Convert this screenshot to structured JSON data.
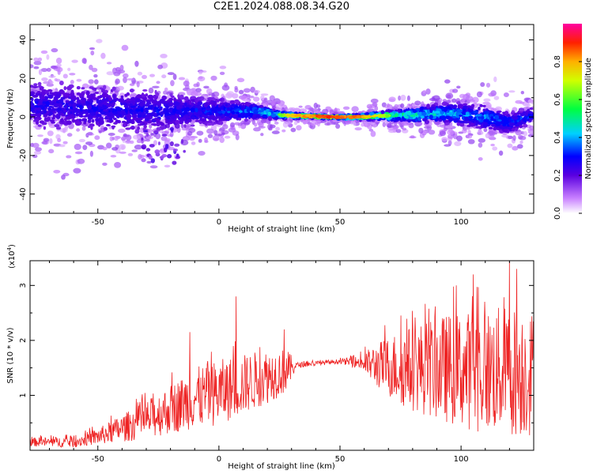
{
  "title": "C2E1.2024.088.08.34.G20",
  "colors": {
    "snr_line": "#ee2222",
    "axis": "#000000"
  },
  "chart_data": [
    {
      "type": "heatmap",
      "xlabel": "Height of straight line (km)",
      "ylabel": "Frequency (Hz)",
      "xlim": [
        -78,
        130
      ],
      "ylim": [
        -50,
        48
      ],
      "x_ticks": [
        -50,
        0,
        50,
        100
      ],
      "y_ticks": [
        -40,
        -20,
        0,
        20,
        40
      ],
      "colorbar": {
        "label": "Normalized spectral amplitude",
        "range": [
          0,
          1
        ],
        "ticks": [
          "0.0",
          "0.2",
          "0.4",
          "0.6",
          "0.8"
        ],
        "colormap": "rainbow (white-violet-blue-cyan-green-yellow-red-magenta)"
      },
      "ridge": [
        {
          "x": -75,
          "f": 6,
          "spread": 9
        },
        {
          "x": -60,
          "f": 5,
          "spread": 9
        },
        {
          "x": -45,
          "f": 4,
          "spread": 9
        },
        {
          "x": -30,
          "f": 3,
          "spread": 8
        },
        {
          "x": -15,
          "f": 3,
          "spread": 6
        },
        {
          "x": 0,
          "f": 3,
          "spread": 5
        },
        {
          "x": 15,
          "f": 3,
          "spread": 3
        },
        {
          "x": 25,
          "f": 1,
          "spread": 1.5
        },
        {
          "x": 35,
          "f": 0.5,
          "spread": 0.8
        },
        {
          "x": 45,
          "f": 0,
          "spread": 0.6
        },
        {
          "x": 55,
          "f": 0,
          "spread": 0.8
        },
        {
          "x": 65,
          "f": 0.5,
          "spread": 1.5
        },
        {
          "x": 80,
          "f": 1,
          "spread": 3
        },
        {
          "x": 95,
          "f": 2,
          "spread": 4
        },
        {
          "x": 110,
          "f": 0,
          "spread": 5
        },
        {
          "x": 120,
          "f": -3,
          "spread": 4
        },
        {
          "x": 130,
          "f": 1,
          "spread": 3
        }
      ],
      "amplitude_profile": [
        {
          "x": -78,
          "a": 0.3
        },
        {
          "x": -40,
          "a": 0.3
        },
        {
          "x": 0,
          "a": 0.35
        },
        {
          "x": 20,
          "a": 0.5
        },
        {
          "x": 30,
          "a": 0.8
        },
        {
          "x": 45,
          "a": 0.95
        },
        {
          "x": 60,
          "a": 0.85
        },
        {
          "x": 75,
          "a": 0.6
        },
        {
          "x": 100,
          "a": 0.45
        },
        {
          "x": 130,
          "a": 0.35
        }
      ]
    },
    {
      "type": "line",
      "xlabel": "Height of straight line (km)",
      "ylabel": "SNR (10 * v/v)",
      "y_multiplier": "(x10",
      "y_multiplier_exp": "4",
      "y_multiplier_close": ")",
      "xlim": [
        -78,
        130
      ],
      "ylim": [
        0,
        3.45
      ],
      "x_ticks": [
        -50,
        0,
        50,
        100
      ],
      "y_ticks": [
        1,
        2,
        3
      ],
      "series": [
        {
          "envelope": [
            {
              "x": -78,
              "center": 0.15,
              "amp": 0.08
            },
            {
              "x": -60,
              "center": 0.15,
              "amp": 0.1
            },
            {
              "x": -50,
              "center": 0.25,
              "amp": 0.15
            },
            {
              "x": -40,
              "center": 0.4,
              "amp": 0.25
            },
            {
              "x": -30,
              "center": 0.55,
              "amp": 0.35
            },
            {
              "x": -20,
              "center": 0.75,
              "amp": 0.45
            },
            {
              "x": -10,
              "center": 0.95,
              "amp": 0.55
            },
            {
              "x": 0,
              "center": 1.05,
              "amp": 0.6
            },
            {
              "x": 10,
              "center": 1.2,
              "amp": 0.55
            },
            {
              "x": 20,
              "center": 1.35,
              "amp": 0.5
            },
            {
              "x": 28,
              "center": 1.45,
              "amp": 0.4
            },
            {
              "x": 32,
              "center": 1.55,
              "amp": 0.05
            },
            {
              "x": 50,
              "center": 1.62,
              "amp": 0.04
            },
            {
              "x": 58,
              "center": 1.6,
              "amp": 0.12
            },
            {
              "x": 65,
              "center": 1.55,
              "amp": 0.4
            },
            {
              "x": 75,
              "center": 1.5,
              "amp": 0.7
            },
            {
              "x": 90,
              "center": 1.5,
              "amp": 0.95
            },
            {
              "x": 105,
              "center": 1.45,
              "amp": 1.1
            },
            {
              "x": 120,
              "center": 1.45,
              "amp": 1.2
            },
            {
              "x": 130,
              "center": 1.4,
              "amp": 1.15
            }
          ],
          "peaks": [
            {
              "x": -12,
              "y": 2.15
            },
            {
              "x": 7,
              "y": 2.8
            },
            {
              "x": 27,
              "y": 2.2
            },
            {
              "x": 98,
              "y": 3.0
            },
            {
              "x": 105,
              "y": 3.2
            },
            {
              "x": 120,
              "y": 3.45
            },
            {
              "x": 123,
              "y": 3.3
            }
          ]
        }
      ]
    }
  ]
}
